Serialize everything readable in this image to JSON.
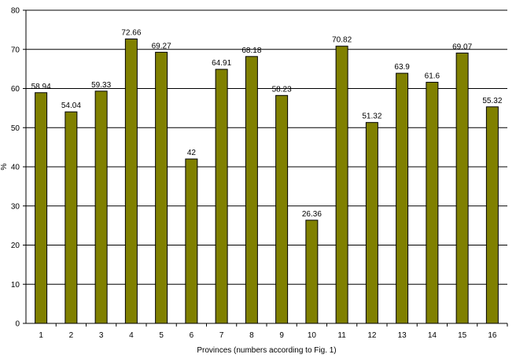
{
  "chart_data": {
    "type": "bar",
    "title": "",
    "xlabel": "Provinces (numbers according to Fig. 1)",
    "ylabel": "%",
    "ylim": [
      0,
      80
    ],
    "yticks": [
      0,
      10,
      20,
      30,
      40,
      50,
      60,
      70,
      80
    ],
    "grid": "horizontal",
    "legend": "none",
    "categories": [
      "1",
      "2",
      "3",
      "4",
      "5",
      "6",
      "7",
      "8",
      "9",
      "10",
      "11",
      "12",
      "13",
      "14",
      "15",
      "16"
    ],
    "values": [
      58.94,
      54.04,
      59.33,
      72.66,
      69.27,
      42,
      64.91,
      68.18,
      58.23,
      26.36,
      70.82,
      51.32,
      63.9,
      61.6,
      69.07,
      55.32
    ],
    "labels": [
      "58.94",
      "54.04",
      "59.33",
      "72.66",
      "69.27",
      "42",
      "64.91",
      "68.18",
      "58.23",
      "26.36",
      "70.82",
      "51.32",
      "63.9",
      "61.6",
      "69.07",
      "55.32"
    ],
    "colors": {
      "bar": "#808000",
      "bar_stroke": "#000000",
      "grid": "#000000"
    }
  }
}
